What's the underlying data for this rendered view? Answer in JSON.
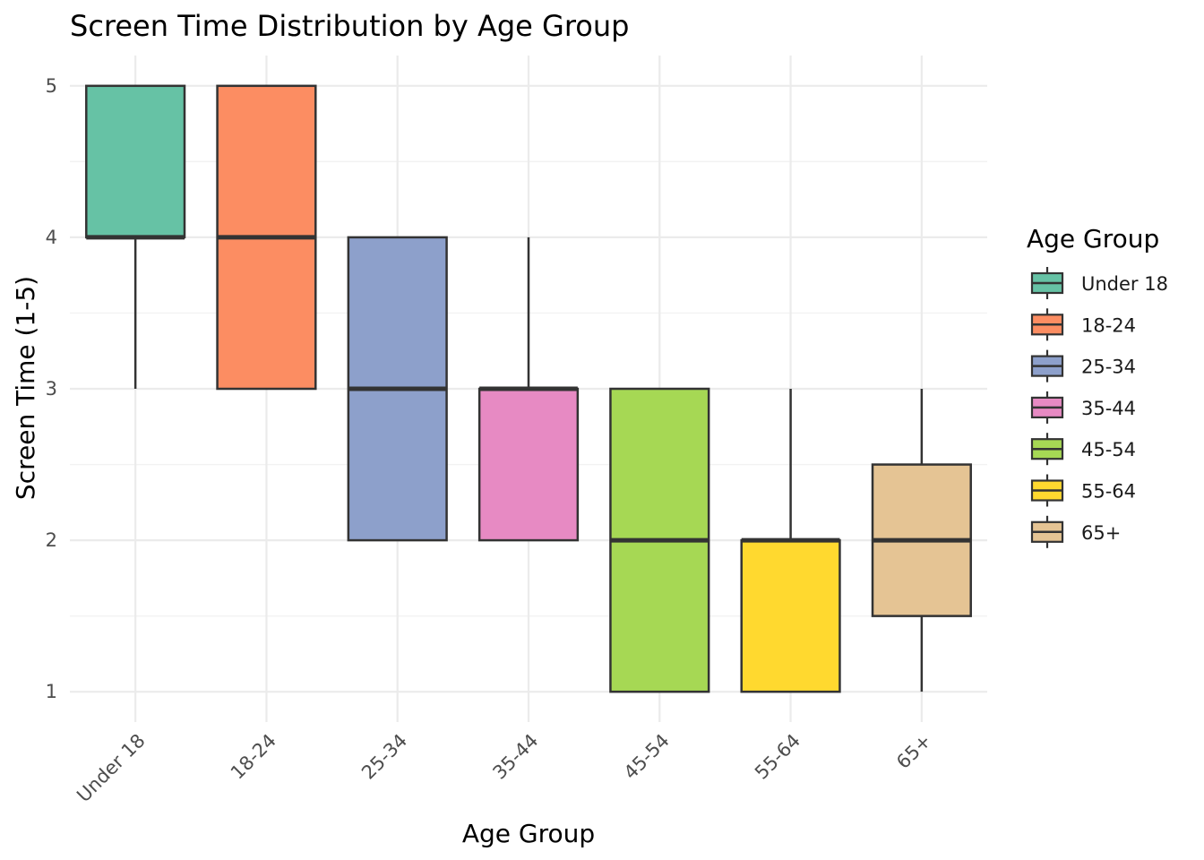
{
  "chart_data": {
    "type": "boxplot",
    "title": "Screen Time Distribution by Age Group",
    "xlabel": "Age Group",
    "ylabel": "Screen Time (1-5)",
    "ylim": [
      0.8,
      5.2
    ],
    "yticks": [
      1,
      2,
      3,
      4,
      5
    ],
    "grid": true,
    "legend": {
      "title": "Age Group",
      "position": "right"
    },
    "categories": [
      "Under 18",
      "18-24",
      "25-34",
      "35-44",
      "45-54",
      "55-64",
      "65+"
    ],
    "series": [
      {
        "name": "Under 18",
        "color": "#66c2a5",
        "min": 3,
        "q1": 4,
        "median": 4,
        "q3": 5,
        "max": 5
      },
      {
        "name": "18-24",
        "color": "#fc8d62",
        "min": 3,
        "q1": 3,
        "median": 4,
        "q3": 5,
        "max": 5
      },
      {
        "name": "25-34",
        "color": "#8da0cb",
        "min": 2,
        "q1": 2,
        "median": 3,
        "q3": 4,
        "max": 4
      },
      {
        "name": "35-44",
        "color": "#e78ac3",
        "min": 2,
        "q1": 2,
        "median": 3,
        "q3": 3,
        "max": 4
      },
      {
        "name": "45-54",
        "color": "#a6d854",
        "min": 1,
        "q1": 1,
        "median": 2,
        "q3": 3,
        "max": 3
      },
      {
        "name": "55-64",
        "color": "#ffd92f",
        "min": 1,
        "q1": 1,
        "median": 2,
        "q3": 2,
        "max": 3
      },
      {
        "name": "65+",
        "color": "#e5c494",
        "min": 1,
        "q1": 1.5,
        "median": 2,
        "q3": 2.5,
        "max": 3
      }
    ]
  }
}
